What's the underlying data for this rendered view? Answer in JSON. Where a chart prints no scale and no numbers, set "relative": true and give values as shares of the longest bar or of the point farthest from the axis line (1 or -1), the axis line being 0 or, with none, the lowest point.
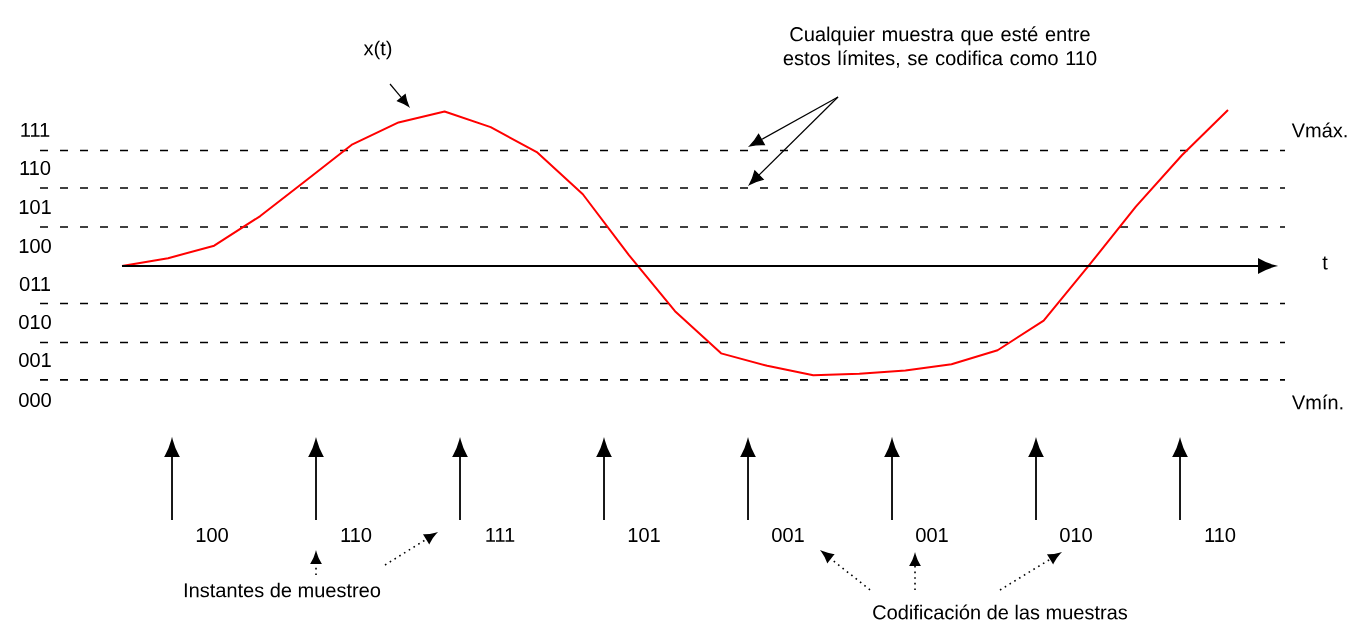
{
  "chart_data": {
    "type": "line",
    "relative": true,
    "xlabel": "t",
    "categories": [
      null,
      null,
      null,
      null,
      null,
      null,
      null,
      null,
      null,
      null,
      null,
      null,
      null,
      null,
      null,
      null,
      null,
      null,
      null,
      null,
      null,
      null,
      null,
      null,
      null
    ],
    "series": [
      {
        "color": "#ff0000",
        "values": [
          0,
          0.05,
          0.13,
          0.32,
          0.55,
          0.78,
          0.92,
          0.99,
          0.89,
          0.73,
          0.46,
          0.07,
          -0.29,
          -0.56,
          -0.64,
          -0.7,
          -0.69,
          -0.67,
          -0.63,
          -0.54,
          -0.35,
          0.01,
          0.38,
          0.71,
          1
        ]
      }
    ],
    "ref_lines": [
      {
        "axis": "y",
        "value": 0.74,
        "color": "#000000",
        "line_style": "dashed"
      },
      {
        "axis": "y",
        "value": 0.5,
        "color": "#000000",
        "line_style": "dashed"
      },
      {
        "axis": "y",
        "value": 0.25,
        "color": "#000000",
        "line_style": "dashed"
      },
      {
        "axis": "y",
        "value": -0.24,
        "color": "#000000",
        "line_style": "dashed"
      },
      {
        "axis": "y",
        "value": -0.49,
        "color": "#000000",
        "line_style": "dashed"
      },
      {
        "axis": "y",
        "value": -0.73,
        "color": "#000000",
        "line_style": "dashed"
      }
    ],
    "annotations": [
      "x(t)",
      "Cualquier muestra que esté entre estos límites, se codifica como 110",
      "Vmáx.",
      "Vmín.",
      "111",
      "110",
      "101",
      "100",
      "011",
      "010",
      "001",
      "000",
      "100",
      "110",
      "111",
      "101",
      "001",
      "001",
      "010",
      "110",
      "Instantes de muestreo",
      "Codificación de las muestras"
    ]
  }
}
